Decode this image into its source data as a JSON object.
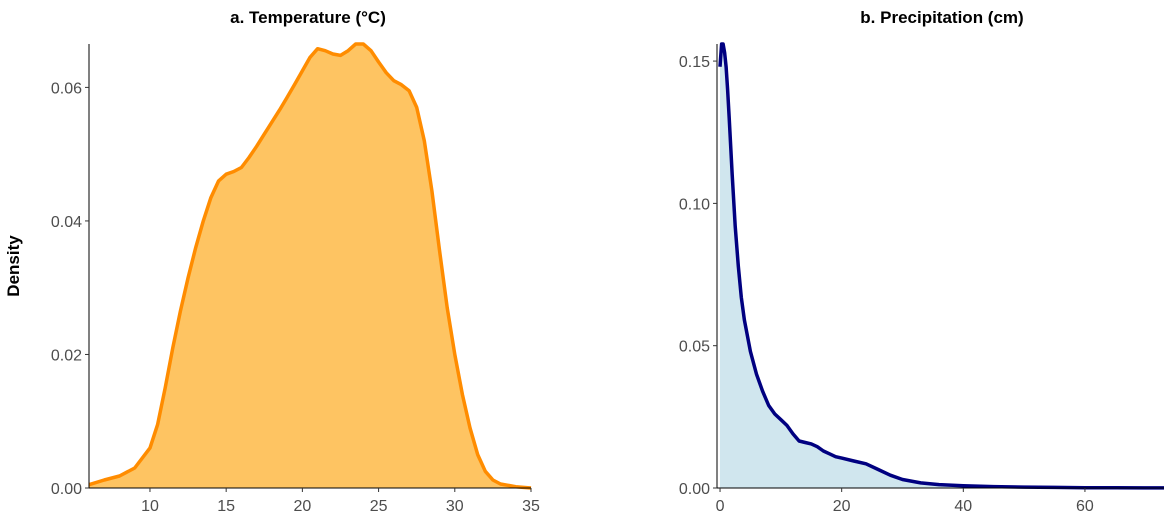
{
  "figure": {
    "ylabel": "Density"
  },
  "chart_data": [
    {
      "type": "area",
      "title": "a. Temperature (°C)",
      "xlabel": "",
      "ylabel": "Density",
      "xlim": [
        6,
        35
      ],
      "ylim": [
        0,
        0.0665
      ],
      "xticks": [
        "10",
        "15",
        "20",
        "25",
        "30",
        "35"
      ],
      "xtick_values": [
        10,
        15,
        20,
        25,
        30,
        35
      ],
      "yticks": [
        "0.00",
        "0.02",
        "0.04",
        "0.06"
      ],
      "ytick_values": [
        0,
        0.02,
        0.04,
        0.06
      ],
      "grid": false,
      "fill_color": "#fec462",
      "line_color": "#ff8c00",
      "series": [
        {
          "x": [
            6,
            7,
            8,
            9,
            10,
            10.5,
            11,
            11.5,
            12,
            12.5,
            13,
            13.5,
            14,
            14.5,
            15,
            15.5,
            16,
            16.5,
            17,
            17.5,
            18,
            18.5,
            19,
            19.5,
            20,
            20.5,
            21,
            21.5,
            22,
            22.5,
            23,
            23.5,
            24,
            24.5,
            25,
            25.5,
            26,
            26.5,
            27,
            27.5,
            28,
            28.5,
            29,
            29.5,
            30,
            30.5,
            31,
            31.5,
            32,
            32.5,
            33,
            34,
            35
          ],
          "y": [
            0.0005,
            0.0012,
            0.0018,
            0.003,
            0.006,
            0.0095,
            0.015,
            0.021,
            0.0265,
            0.0315,
            0.036,
            0.04,
            0.0435,
            0.046,
            0.047,
            0.0474,
            0.048,
            0.0495,
            0.0512,
            0.053,
            0.0548,
            0.0566,
            0.0585,
            0.0605,
            0.0625,
            0.0645,
            0.0658,
            0.0655,
            0.065,
            0.0648,
            0.0655,
            0.0665,
            0.0665,
            0.0655,
            0.0638,
            0.0622,
            0.061,
            0.0604,
            0.0595,
            0.057,
            0.052,
            0.0445,
            0.0355,
            0.027,
            0.02,
            0.014,
            0.009,
            0.005,
            0.0025,
            0.0012,
            0.0006,
            0.0002,
            0.0
          ]
        }
      ]
    },
    {
      "type": "area",
      "title": "b. Precipitation (cm)",
      "xlabel": "",
      "ylabel": "",
      "xlim": [
        -0.5,
        73
      ],
      "ylim": [
        0,
        0.156
      ],
      "xticks": [
        "0",
        "20",
        "40",
        "60"
      ],
      "xtick_values": [
        0,
        20,
        40,
        60
      ],
      "yticks": [
        "0.00",
        "0.05",
        "0.10",
        "0.15"
      ],
      "ytick_values": [
        0,
        0.05,
        0.1,
        0.15
      ],
      "grid": false,
      "fill_color": "#d0e6ee",
      "line_color": "#000080",
      "series": [
        {
          "x": [
            0,
            0.25,
            0.5,
            0.75,
            1,
            1.25,
            1.5,
            2,
            2.5,
            3,
            3.5,
            4,
            5,
            6,
            7,
            8,
            9,
            10,
            11,
            12,
            13,
            14,
            15,
            16,
            17,
            18,
            19,
            20,
            22,
            24,
            26,
            28,
            30,
            33,
            36,
            40,
            45,
            50,
            55,
            60,
            65,
            70,
            73
          ],
          "y": [
            0.148,
            0.156,
            0.156,
            0.153,
            0.148,
            0.14,
            0.13,
            0.11,
            0.092,
            0.078,
            0.067,
            0.059,
            0.048,
            0.04,
            0.034,
            0.029,
            0.026,
            0.024,
            0.022,
            0.019,
            0.0165,
            0.016,
            0.0155,
            0.0145,
            0.013,
            0.012,
            0.011,
            0.0105,
            0.0095,
            0.0085,
            0.0065,
            0.0045,
            0.003,
            0.0018,
            0.0012,
            0.0008,
            0.0005,
            0.0003,
            0.0002,
            0.0001,
            0.0001,
            5e-05,
            2e-05
          ]
        }
      ]
    }
  ]
}
